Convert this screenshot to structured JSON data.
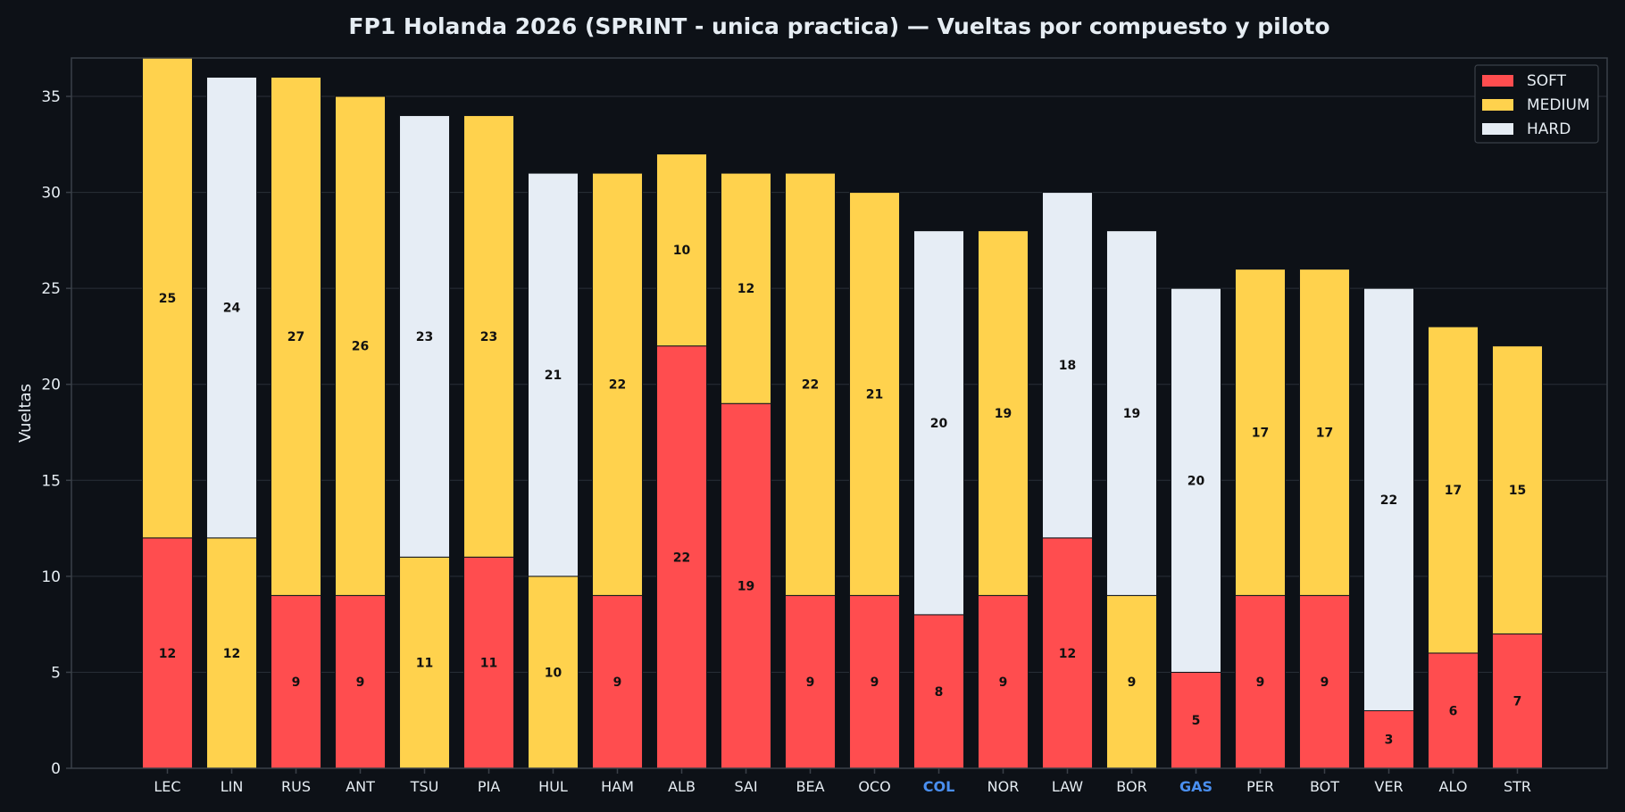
{
  "chart_data": {
    "type": "bar",
    "stacked": true,
    "title": "FP1 Holanda 2026 (SPRINT - unica practica) — Vueltas por compuesto y piloto",
    "xlabel": "",
    "ylabel": "Vueltas",
    "ylim": [
      0,
      37
    ],
    "yticks": [
      0,
      5,
      10,
      15,
      20,
      25,
      30,
      35
    ],
    "grid": true,
    "legend_position": "top-right",
    "colors": {
      "background": "#0d1117",
      "text": "#e6edf3",
      "axis": "#3a4048",
      "grid": "#2a3038",
      "highlight_label": "#4a8ff0",
      "bar_edge": "#11151b"
    },
    "legend": [
      {
        "name": "SOFT",
        "color": "#ff4d4f"
      },
      {
        "name": "MEDIUM",
        "color": "#ffd24d"
      },
      {
        "name": "HARD",
        "color": "#e6edf5"
      }
    ],
    "highlighted_categories": [
      "COL",
      "GAS"
    ],
    "categories": [
      "LEC",
      "LIN",
      "RUS",
      "ANT",
      "TSU",
      "PIA",
      "HUL",
      "HAM",
      "ALB",
      "SAI",
      "BEA",
      "OCO",
      "COL",
      "NOR",
      "LAW",
      "BOR",
      "GAS",
      "PER",
      "BOT",
      "VER",
      "ALO",
      "STR"
    ],
    "stacks": [
      [
        {
          "compound": "SOFT",
          "value": 12
        },
        {
          "compound": "MEDIUM",
          "value": 25
        }
      ],
      [
        {
          "compound": "MEDIUM",
          "value": 12
        },
        {
          "compound": "HARD",
          "value": 24
        }
      ],
      [
        {
          "compound": "SOFT",
          "value": 9
        },
        {
          "compound": "MEDIUM",
          "value": 27
        }
      ],
      [
        {
          "compound": "SOFT",
          "value": 9
        },
        {
          "compound": "MEDIUM",
          "value": 26
        }
      ],
      [
        {
          "compound": "MEDIUM",
          "value": 11
        },
        {
          "compound": "HARD",
          "value": 23
        }
      ],
      [
        {
          "compound": "SOFT",
          "value": 11
        },
        {
          "compound": "MEDIUM",
          "value": 23
        }
      ],
      [
        {
          "compound": "MEDIUM",
          "value": 10
        },
        {
          "compound": "HARD",
          "value": 21
        }
      ],
      [
        {
          "compound": "SOFT",
          "value": 9
        },
        {
          "compound": "MEDIUM",
          "value": 22
        }
      ],
      [
        {
          "compound": "SOFT",
          "value": 22
        },
        {
          "compound": "MEDIUM",
          "value": 10
        }
      ],
      [
        {
          "compound": "SOFT",
          "value": 19
        },
        {
          "compound": "MEDIUM",
          "value": 12
        }
      ],
      [
        {
          "compound": "SOFT",
          "value": 9
        },
        {
          "compound": "MEDIUM",
          "value": 22
        }
      ],
      [
        {
          "compound": "SOFT",
          "value": 9
        },
        {
          "compound": "MEDIUM",
          "value": 21
        }
      ],
      [
        {
          "compound": "SOFT",
          "value": 8
        },
        {
          "compound": "HARD",
          "value": 20
        }
      ],
      [
        {
          "compound": "SOFT",
          "value": 9
        },
        {
          "compound": "MEDIUM",
          "value": 19
        }
      ],
      [
        {
          "compound": "SOFT",
          "value": 12
        },
        {
          "compound": "HARD",
          "value": 18
        }
      ],
      [
        {
          "compound": "MEDIUM",
          "value": 9
        },
        {
          "compound": "HARD",
          "value": 19
        }
      ],
      [
        {
          "compound": "SOFT",
          "value": 5
        },
        {
          "compound": "HARD",
          "value": 20
        }
      ],
      [
        {
          "compound": "SOFT",
          "value": 9
        },
        {
          "compound": "MEDIUM",
          "value": 17
        }
      ],
      [
        {
          "compound": "SOFT",
          "value": 9
        },
        {
          "compound": "MEDIUM",
          "value": 17
        }
      ],
      [
        {
          "compound": "SOFT",
          "value": 3
        },
        {
          "compound": "HARD",
          "value": 22
        }
      ],
      [
        {
          "compound": "SOFT",
          "value": 6
        },
        {
          "compound": "MEDIUM",
          "value": 17
        }
      ],
      [
        {
          "compound": "SOFT",
          "value": 7
        },
        {
          "compound": "MEDIUM",
          "value": 15
        }
      ]
    ]
  }
}
